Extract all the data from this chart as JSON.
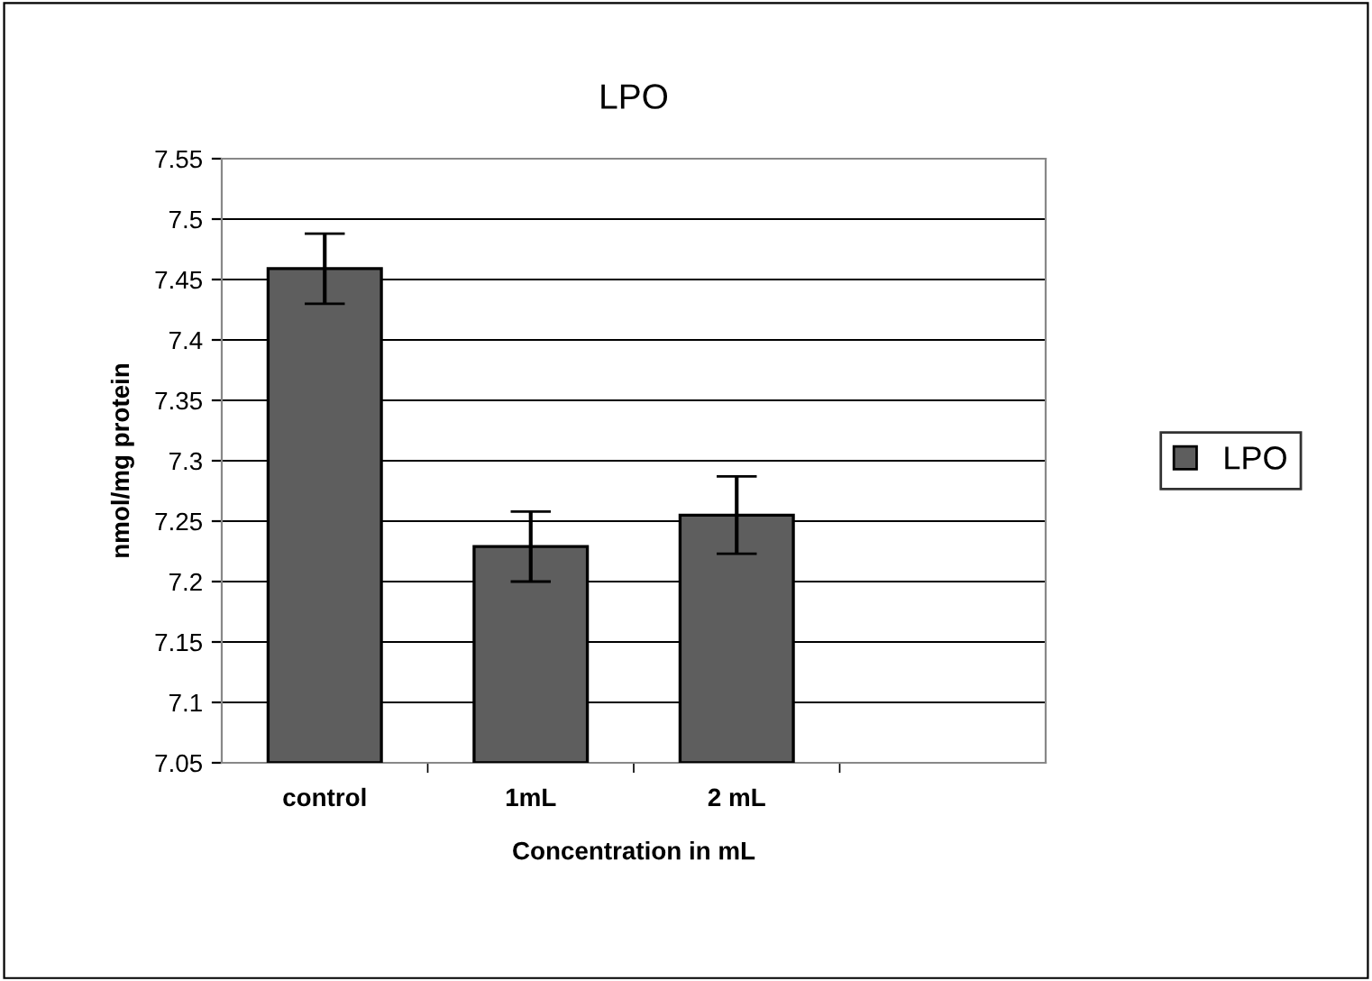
{
  "chart_data": {
    "type": "bar",
    "title": "LPO",
    "xlabel": "Concentration in mL",
    "ylabel": "nmol/mg protein",
    "categories": [
      "control",
      "1mL",
      "2 mL",
      null
    ],
    "series": [
      {
        "name": "LPO",
        "color": "#5e5e5e",
        "values": [
          7.459,
          7.229,
          7.255,
          null
        ],
        "errors": [
          0.029,
          0.029,
          0.032,
          null
        ]
      }
    ],
    "ylim": [
      7.05,
      7.55
    ],
    "yticks": [
      7.05,
      7.1,
      7.15,
      7.2,
      7.25,
      7.3,
      7.35,
      7.4,
      7.45,
      7.5,
      7.55
    ],
    "grid": "y",
    "legend": "right"
  }
}
